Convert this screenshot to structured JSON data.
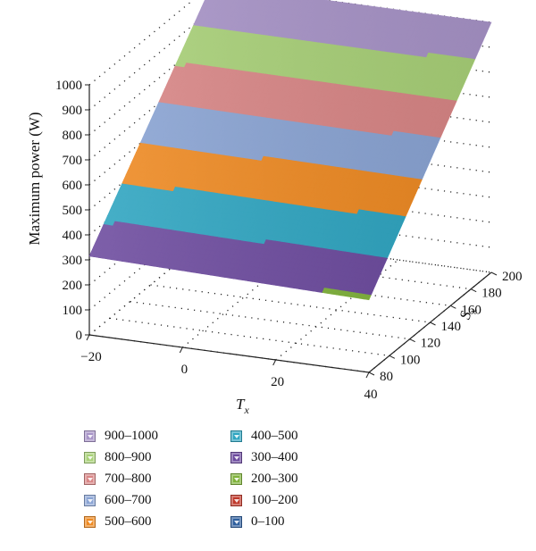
{
  "chart_data": {
    "type": "surface",
    "title": "",
    "xlabel": "T_x",
    "ylabel": "S_x",
    "zlabel": "Maximum power (W)",
    "xlim": [
      -20,
      40
    ],
    "ylim": [
      80,
      200
    ],
    "zlim": [
      0,
      1000
    ],
    "x_ticks": [
      "−20",
      "0",
      "20",
      "40"
    ],
    "y_ticks": [
      "80",
      "100",
      "120",
      "140",
      "160",
      "180",
      "200"
    ],
    "z_ticks": [
      "0",
      "100",
      "200",
      "300",
      "400",
      "500",
      "600",
      "700",
      "800",
      "900",
      "1000"
    ],
    "corner_values": [
      {
        "x": -20,
        "y": 80,
        "z": 315
      },
      {
        "x": 40,
        "y": 80,
        "z": 290
      },
      {
        "x": 40,
        "y": 200,
        "z": 1000
      },
      {
        "x": -20,
        "y": 200,
        "z": 1000
      }
    ],
    "legend": [
      {
        "label": "900–1000",
        "color": "#a894c8"
      },
      {
        "label": "800–900",
        "color": "#a9d178"
      },
      {
        "label": "700–800",
        "color": "#d98686"
      },
      {
        "label": "600–700",
        "color": "#8aa4d4"
      },
      {
        "label": "500–600",
        "color": "#ef8a22"
      },
      {
        "label": "400–500",
        "color": "#2ea5c1"
      },
      {
        "label": "300–400",
        "color": "#6c4a9e"
      },
      {
        "label": "200–300",
        "color": "#7fb23a"
      },
      {
        "label": "100–200",
        "color": "#c0392b"
      },
      {
        "label": "0–100",
        "color": "#2e5f9e"
      }
    ],
    "legend_placement": "bottom",
    "grid": true
  }
}
